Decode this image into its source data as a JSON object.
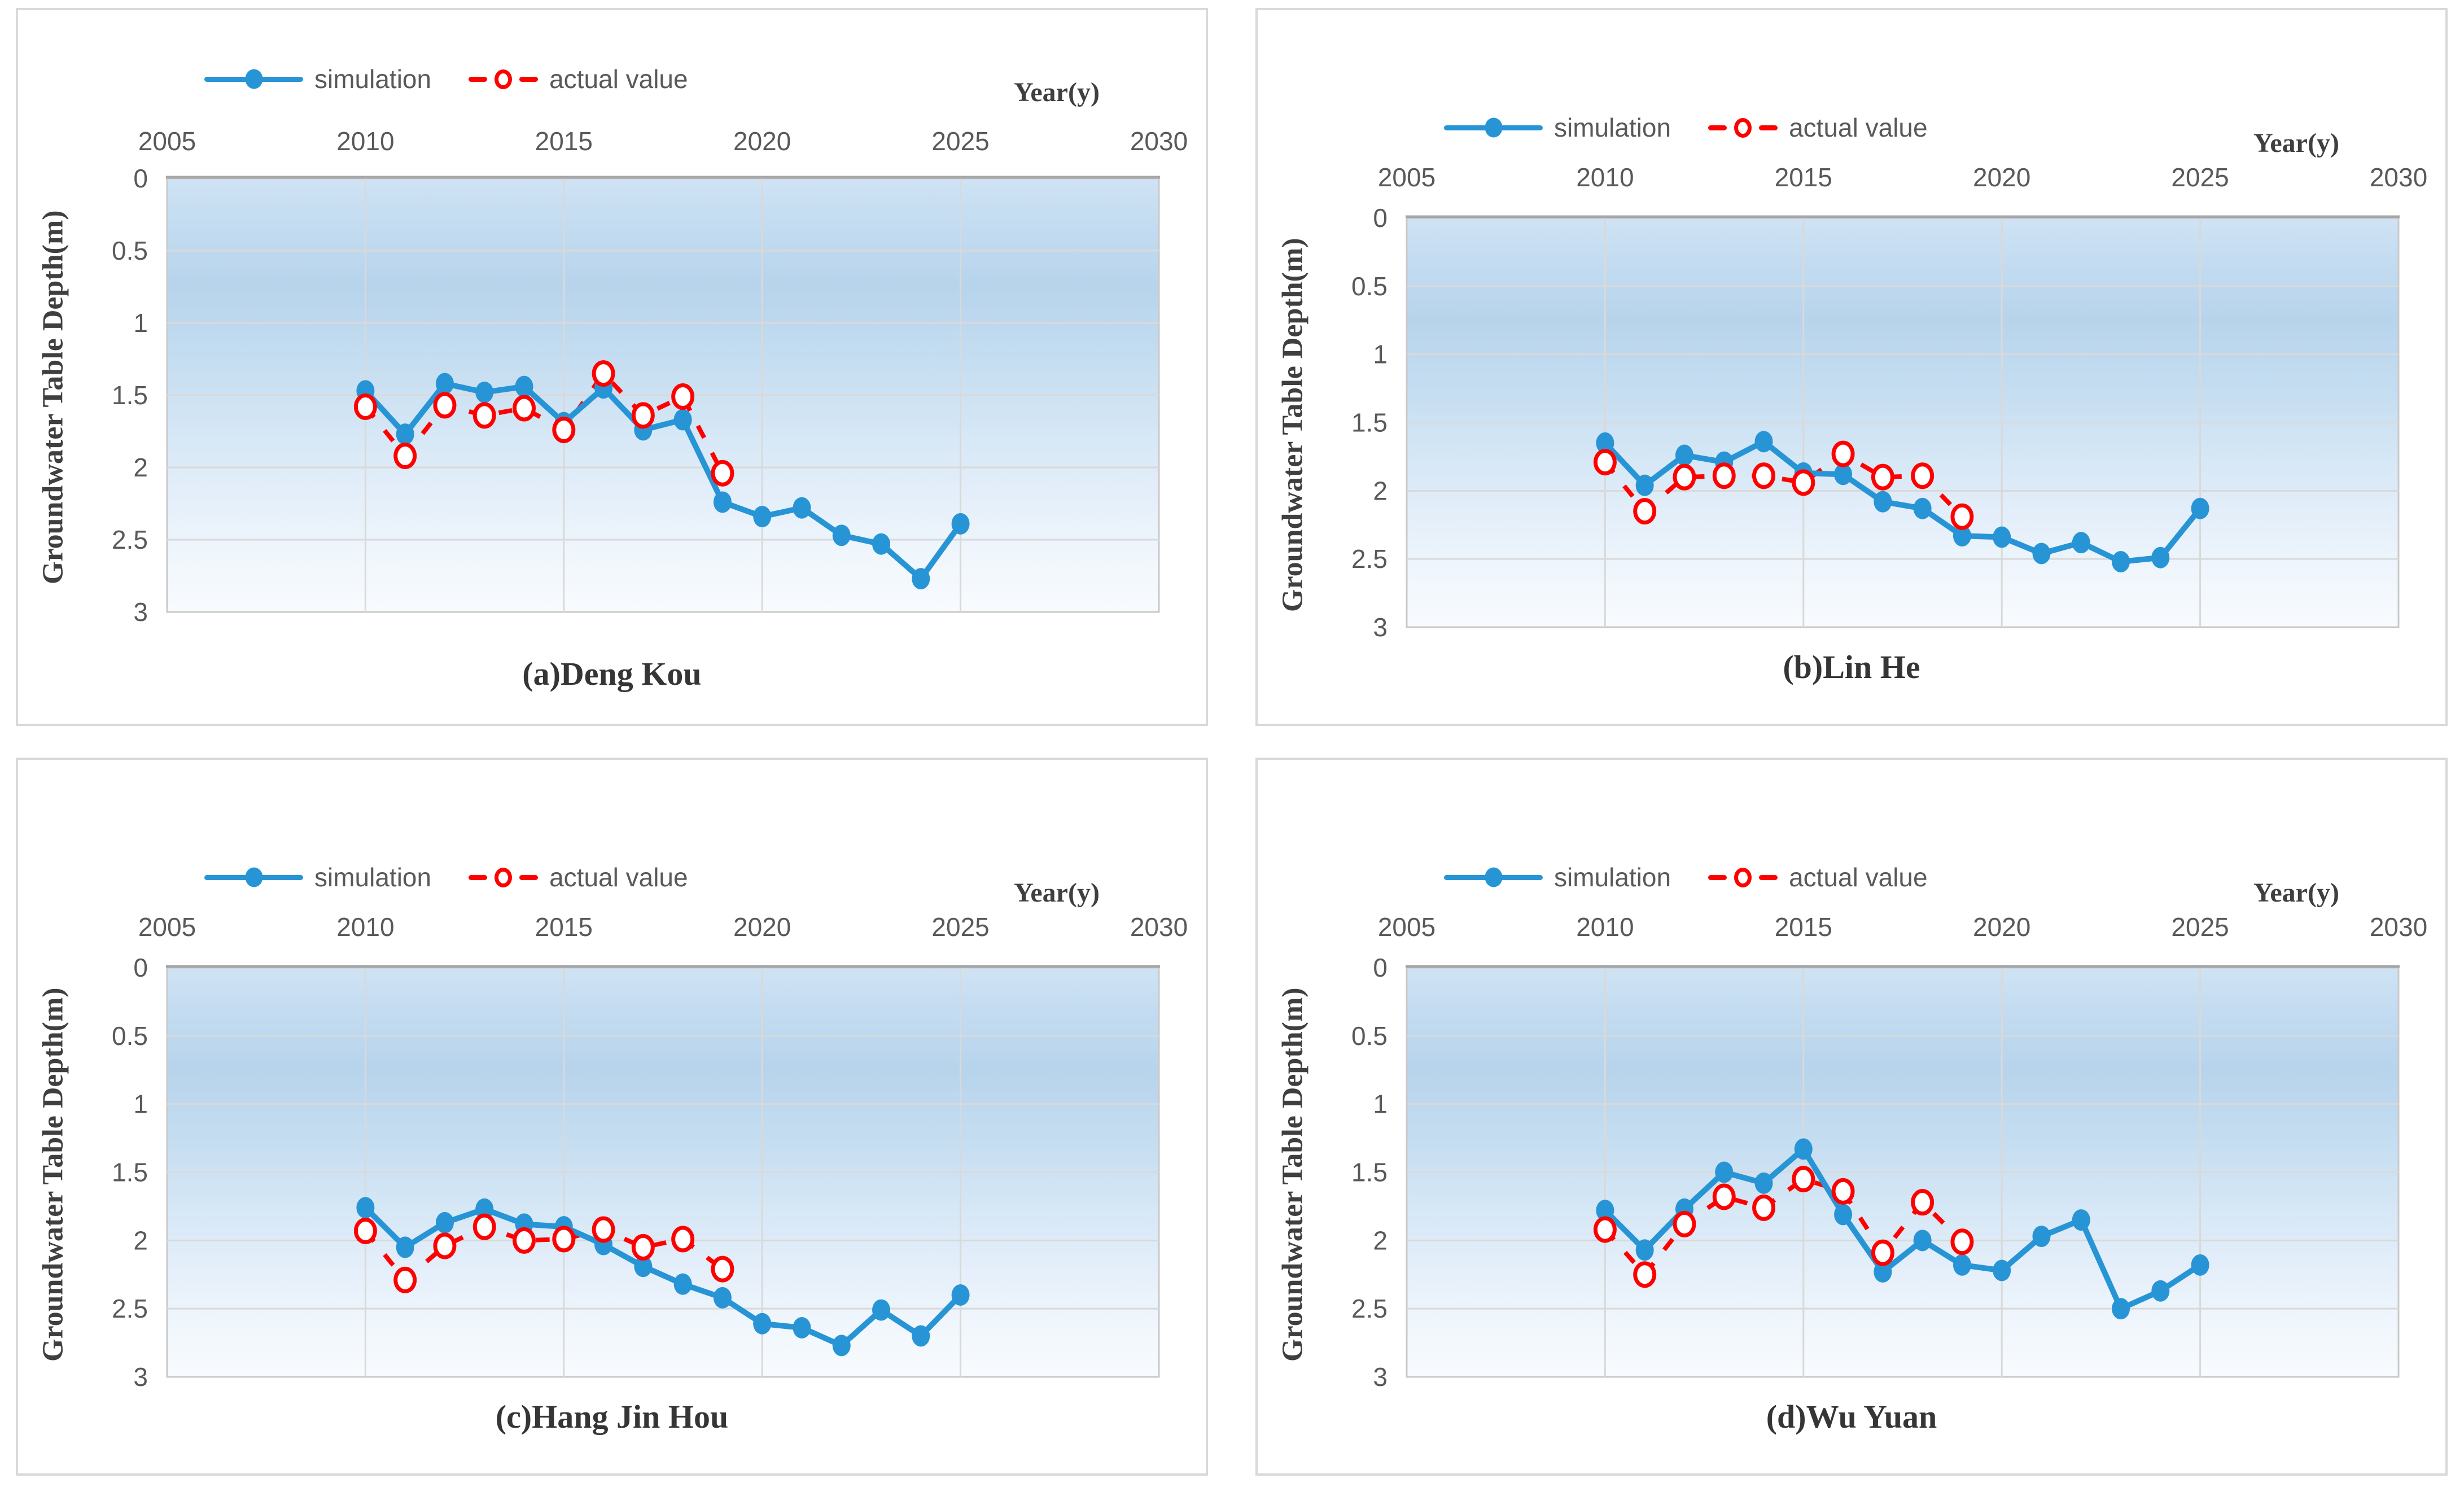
{
  "figure": {
    "x_axis_title": "Year(y)",
    "y_axis_title": "Groundwater Table Depth(m)",
    "legend": {
      "simulation": "simulation",
      "actual": "actual value"
    },
    "x_ticks": [
      "2005",
      "2010",
      "2015",
      "2020",
      "2025",
      "2030"
    ],
    "y_ticks": [
      "0",
      "0.5",
      "1",
      "1.5",
      "2",
      "2.5",
      "3"
    ],
    "colors": {
      "simulation_blue": "#2795d5",
      "actual_red": "#ff0000",
      "gridline": "#d9d9d9",
      "plot_border": "#c9c9c9",
      "plot_top_border": "#a6a6a6",
      "tick_text": "#595959",
      "plot_bg_top": "#c2dbf0",
      "plot_bg_bottom": "#f8fbfe"
    }
  },
  "chart_data": [
    {
      "type": "line",
      "title": "(a)Deng Kou",
      "xlabel": "Year(y)",
      "ylabel": "Groundwater Table Depth(m)",
      "xlim": [
        2005,
        2030
      ],
      "ylim": [
        0,
        3
      ],
      "y_axis_direction": "inverted (depth 0 at top, 3 at bottom)",
      "grid": true,
      "legend_position": "top",
      "series": [
        {
          "name": "simulation",
          "color": "#2795d5",
          "style": "solid line, filled circle markers",
          "x": [
            2010,
            2011,
            2012,
            2013,
            2014,
            2015,
            2016,
            2017,
            2018,
            2019,
            2020,
            2021,
            2022,
            2023,
            2024,
            2025
          ],
          "y": [
            1.47,
            1.77,
            1.42,
            1.48,
            1.44,
            1.69,
            1.45,
            1.74,
            1.67,
            2.24,
            2.34,
            2.28,
            2.47,
            2.53,
            2.77,
            2.39
          ]
        },
        {
          "name": "actual value",
          "color": "#ff0000",
          "style": "dashed line, open circle markers",
          "x": [
            2010,
            2011,
            2012,
            2013,
            2014,
            2015,
            2016,
            2017,
            2018,
            2019
          ],
          "y": [
            1.58,
            1.92,
            1.57,
            1.64,
            1.59,
            1.74,
            1.35,
            1.64,
            1.51,
            2.04
          ]
        }
      ]
    },
    {
      "type": "line",
      "title": "(b)Lin He",
      "xlabel": "Year(y)",
      "ylabel": "Groundwater Table Depth(m)",
      "xlim": [
        2005,
        2030
      ],
      "ylim": [
        0,
        3
      ],
      "y_axis_direction": "inverted (depth 0 at top, 3 at bottom)",
      "grid": true,
      "legend_position": "top",
      "series": [
        {
          "name": "simulation",
          "color": "#2795d5",
          "style": "solid line, filled circle markers",
          "x": [
            2010,
            2011,
            2012,
            2013,
            2014,
            2015,
            2016,
            2017,
            2018,
            2019,
            2020,
            2021,
            2022,
            2023,
            2024,
            2025
          ],
          "y": [
            1.65,
            1.96,
            1.74,
            1.79,
            1.64,
            1.87,
            1.88,
            2.08,
            2.13,
            2.33,
            2.34,
            2.46,
            2.38,
            2.52,
            2.49,
            2.13
          ]
        },
        {
          "name": "actual value",
          "color": "#ff0000",
          "style": "dashed line, open circle markers",
          "x": [
            2010,
            2011,
            2012,
            2013,
            2014,
            2015,
            2016,
            2017,
            2018,
            2019
          ],
          "y": [
            1.79,
            2.15,
            1.9,
            1.89,
            1.89,
            1.94,
            1.73,
            1.9,
            1.89,
            2.19
          ]
        }
      ]
    },
    {
      "type": "line",
      "title": "(c)Hang Jin Hou",
      "xlabel": "Year(y)",
      "ylabel": "Groundwater Table Depth(m)",
      "xlim": [
        2005,
        2030
      ],
      "ylim": [
        0,
        3
      ],
      "y_axis_direction": "inverted (depth 0 at top, 3 at bottom)",
      "grid": true,
      "legend_position": "top",
      "series": [
        {
          "name": "simulation",
          "color": "#2795d5",
          "style": "solid line, filled circle markers",
          "x": [
            2010,
            2011,
            2012,
            2013,
            2014,
            2015,
            2016,
            2017,
            2018,
            2019,
            2020,
            2021,
            2022,
            2023,
            2024,
            2025
          ],
          "y": [
            1.76,
            2.05,
            1.87,
            1.77,
            1.88,
            1.9,
            2.03,
            2.19,
            2.32,
            2.42,
            2.61,
            2.64,
            2.77,
            2.51,
            2.7,
            2.4
          ]
        },
        {
          "name": "actual value",
          "color": "#ff0000",
          "style": "dashed line, open circle markers",
          "x": [
            2010,
            2011,
            2012,
            2013,
            2014,
            2015,
            2016,
            2017,
            2018,
            2019
          ],
          "y": [
            1.93,
            2.29,
            2.04,
            1.9,
            2.0,
            1.99,
            1.92,
            2.05,
            1.99,
            2.21
          ]
        }
      ]
    },
    {
      "type": "line",
      "title": "(d)Wu Yuan",
      "xlabel": "Year(y)",
      "ylabel": "Groundwater Table Depth(m)",
      "xlim": [
        2005,
        2030
      ],
      "ylim": [
        0,
        3
      ],
      "y_axis_direction": "inverted (depth 0 at top, 3 at bottom)",
      "grid": true,
      "legend_position": "top",
      "series": [
        {
          "name": "simulation",
          "color": "#2795d5",
          "style": "solid line, filled circle markers",
          "x": [
            2010,
            2011,
            2012,
            2013,
            2014,
            2015,
            2016,
            2017,
            2018,
            2019,
            2020,
            2021,
            2022,
            2023,
            2024,
            2025
          ],
          "y": [
            1.78,
            2.07,
            1.77,
            1.5,
            1.58,
            1.33,
            1.81,
            2.23,
            2.0,
            2.18,
            2.22,
            1.97,
            1.85,
            2.5,
            2.37,
            2.18
          ]
        },
        {
          "name": "actual value",
          "color": "#ff0000",
          "style": "dashed line, open circle markers",
          "x": [
            2010,
            2011,
            2012,
            2013,
            2014,
            2015,
            2016,
            2017,
            2018,
            2019
          ],
          "y": [
            1.92,
            2.25,
            1.88,
            1.68,
            1.76,
            1.55,
            1.64,
            2.09,
            1.72,
            2.01
          ]
        }
      ]
    }
  ]
}
